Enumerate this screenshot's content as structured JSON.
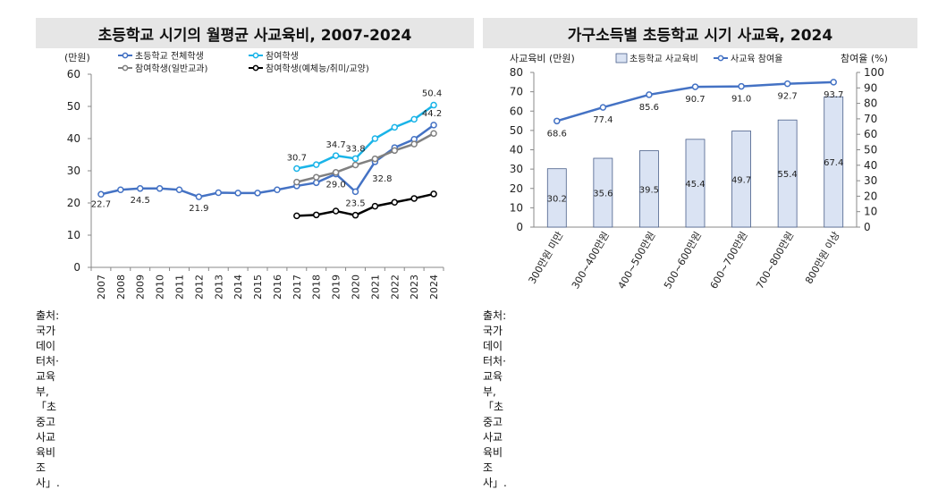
{
  "chart_data": [
    {
      "type": "line",
      "title": "초등학교 시기의 월평균 사교육비, 2007-2024",
      "ylabel": "(만원)",
      "ylim": [
        0,
        60
      ],
      "yticks": [
        0,
        10,
        20,
        30,
        40,
        50,
        60
      ],
      "x": [
        "2007",
        "2008",
        "2009",
        "2010",
        "2011",
        "2012",
        "2013",
        "2014",
        "2015",
        "2016",
        "2017",
        "2018",
        "2019",
        "2020",
        "2021",
        "2022",
        "2023",
        "2024"
      ],
      "series": [
        {
          "name": "초등학교 전체학생",
          "color": "#4472c4",
          "values": [
            22.7,
            24.1,
            24.5,
            24.5,
            24.1,
            21.9,
            23.2,
            23.1,
            23.1,
            24.1,
            25.3,
            26.3,
            29.0,
            23.5,
            32.8,
            37.2,
            39.8,
            44.2
          ]
        },
        {
          "name": "참여학생",
          "color": "#1ab4e8",
          "values": [
            null,
            null,
            null,
            null,
            null,
            null,
            null,
            null,
            null,
            null,
            30.7,
            31.9,
            34.7,
            33.8,
            40.0,
            43.5,
            46.0,
            50.4
          ]
        },
        {
          "name": "참여학생(일반교과)",
          "color": "#808080",
          "values": [
            null,
            null,
            null,
            null,
            null,
            null,
            null,
            null,
            null,
            null,
            26.5,
            28.0,
            29.5,
            31.8,
            33.7,
            36.3,
            38.3,
            41.6
          ]
        },
        {
          "name": "참여학생(예체능/취미/교양)",
          "color": "#000000",
          "values": [
            null,
            null,
            null,
            null,
            null,
            null,
            null,
            null,
            null,
            null,
            16.0,
            16.3,
            17.5,
            16.2,
            19.0,
            20.2,
            21.4,
            22.8
          ]
        }
      ],
      "data_labels": [
        {
          "text": "22.7",
          "series": 0,
          "index": 0
        },
        {
          "text": "24.5",
          "series": 0,
          "index": 2
        },
        {
          "text": "21.9",
          "series": 0,
          "index": 5
        },
        {
          "text": "29.0",
          "series": 0,
          "index": 12
        },
        {
          "text": "23.5",
          "series": 0,
          "index": 13
        },
        {
          "text": "32.8",
          "series": 0,
          "index": 14
        },
        {
          "text": "44.2",
          "series": 0,
          "index": 17
        },
        {
          "text": "30.7",
          "series": 1,
          "index": 10
        },
        {
          "text": "34.7",
          "series": 1,
          "index": 12
        },
        {
          "text": "33.8",
          "series": 1,
          "index": 13
        },
        {
          "text": "50.4",
          "series": 1,
          "index": 17
        }
      ]
    },
    {
      "type": "bar",
      "title": "가구소득별 초등학교 시기 사교육, 2024",
      "ylabel": "사교육비 (만원)",
      "y2label": "참여율 (%)",
      "ylim": [
        0,
        80
      ],
      "y2lim": [
        0,
        100
      ],
      "yticks": [
        0,
        10,
        20,
        30,
        40,
        50,
        60,
        70,
        80
      ],
      "y2ticks": [
        0,
        10,
        20,
        30,
        40,
        50,
        60,
        70,
        80,
        90,
        100
      ],
      "categories": [
        "300만원 미만",
        "300~400만원",
        "400~500만원",
        "500~600만원",
        "600~700만원",
        "700~800만원",
        "800만원 이상"
      ],
      "series": [
        {
          "name": "초등학교 사교육비",
          "kind": "bar",
          "axis": "left",
          "color": "#dae3f3",
          "values": [
            30.2,
            35.6,
            39.5,
            45.4,
            49.7,
            55.4,
            67.4
          ],
          "labels": [
            "30.2",
            "35.6",
            "39.5",
            "45.4",
            "49.7",
            "55.4",
            "67.4"
          ]
        },
        {
          "name": "사교육 참여율",
          "kind": "line",
          "axis": "right",
          "color": "#4472c4",
          "values": [
            68.6,
            77.4,
            85.6,
            90.7,
            91.0,
            92.7,
            93.7
          ],
          "labels": [
            "68.6",
            "77.4",
            "85.6",
            "90.7",
            "91.0",
            "92.7",
            "93.7"
          ]
        }
      ]
    }
  ],
  "source_left": "출처: 국가데이터처·교육부, 「초중고 사교육비 조사」.",
  "source_right": "출처: 국가데이터처·교육부, 「초중고 사교육비 조사」."
}
